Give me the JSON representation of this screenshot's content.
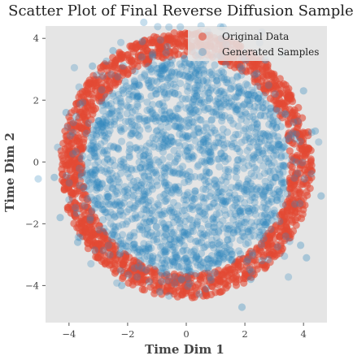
{
  "chart_data": {
    "type": "scatter",
    "title": "Scatter Plot of Final Reverse Diffusion Samples",
    "xlabel": "Time Dim 1",
    "ylabel": "Time Dim 2",
    "xlim": [
      -4.8,
      4.8
    ],
    "ylim": [
      -5.2,
      4.4
    ],
    "xticks": [
      -4,
      -2,
      0,
      2,
      4
    ],
    "yticks": [
      -4,
      -2,
      0,
      2,
      4
    ],
    "xtick_labels": [
      "−4",
      "−2",
      "0",
      "2",
      "4"
    ],
    "ytick_labels": [
      "−4",
      "−2",
      "0",
      "2",
      "4"
    ],
    "grid": false,
    "legend_position": "top-right",
    "series": [
      {
        "name": "Original Data",
        "color": "#E24A33",
        "description_shape": "ring",
        "radius_range": [
          3.55,
          4.3
        ],
        "n_points": 1400
      },
      {
        "name": "Generated Samples",
        "color": "#348ABD",
        "description_shape": "disk_with_scatter",
        "core_radius": 3.4,
        "n_points": 1800,
        "outliers": [
          [
            3.3,
            3.5
          ],
          [
            4.1,
            -3.1
          ],
          [
            -4.5,
            -0.5
          ],
          [
            1.9,
            -4.7
          ],
          [
            -2.5,
            3.6
          ],
          [
            4.4,
            1.0
          ],
          [
            -4.1,
            1.6
          ],
          [
            3.9,
            -2.7
          ],
          [
            -3.7,
            -2.6
          ],
          [
            4.6,
            -1.1
          ],
          [
            2.7,
            3.3
          ],
          [
            -2.2,
            -4.0
          ],
          [
            0.6,
            4.1
          ],
          [
            -0.9,
            -4.2
          ],
          [
            4.0,
            2.3
          ],
          [
            -4.3,
            -1.8
          ],
          [
            2.2,
            -3.8
          ],
          [
            -3.2,
            3.1
          ],
          [
            1.2,
            4.0
          ],
          [
            -1.5,
            3.9
          ]
        ]
      }
    ]
  }
}
